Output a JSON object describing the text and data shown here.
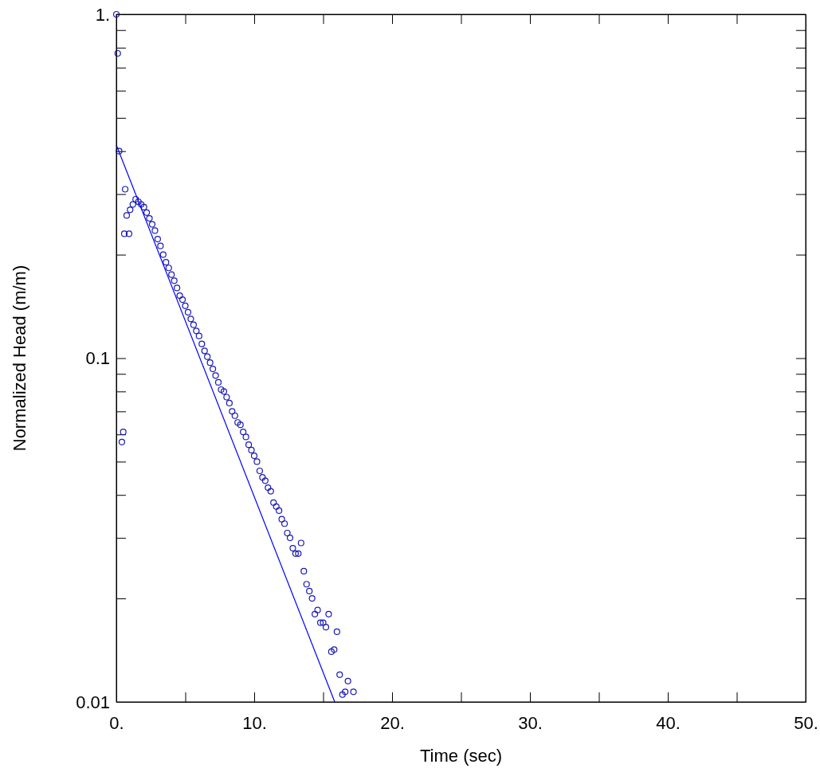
{
  "chart_data": {
    "type": "scatter",
    "xlabel": "Time (sec)",
    "ylabel": "Normalized Head (m/m)",
    "log": "y",
    "grid": false,
    "xlim": [
      0,
      50
    ],
    "xticks": [
      {
        "value": 0,
        "label": "0."
      },
      {
        "value": 5,
        "label": null
      },
      {
        "value": 10,
        "label": "10."
      },
      {
        "value": 15,
        "label": null
      },
      {
        "value": 20,
        "label": "20."
      },
      {
        "value": 25,
        "label": null
      },
      {
        "value": 30,
        "label": "30."
      },
      {
        "value": 35,
        "label": null
      },
      {
        "value": 40,
        "label": "40."
      },
      {
        "value": 45,
        "label": null
      },
      {
        "value": 50,
        "label": "50."
      }
    ],
    "ylim": [
      0.01,
      1
    ],
    "yticks": [
      0.01,
      {
        "value": 0.02,
        "label": null
      },
      {
        "value": 0.03,
        "label": null
      },
      {
        "value": 0.04,
        "label": null
      },
      {
        "value": 0.05,
        "label": null
      },
      {
        "value": 0.06,
        "label": null
      },
      {
        "value": 0.07,
        "label": null
      },
      {
        "value": 0.08,
        "label": null
      },
      {
        "value": 0.09,
        "label": null
      },
      0.1,
      {
        "value": 0.2,
        "label": null
      },
      {
        "value": 0.3,
        "label": null
      },
      {
        "value": 0.4,
        "label": null
      },
      {
        "value": 0.5,
        "label": null
      },
      {
        "value": 0.6,
        "label": null
      },
      {
        "value": 0.7,
        "label": null
      },
      {
        "value": 0.8,
        "label": null
      },
      {
        "value": 0.9,
        "label": null
      },
      {
        "value": 1,
        "label": "1."
      }
    ],
    "series": [
      {
        "marker": "circle",
        "color": "#1a1ab4",
        "x": [
          0,
          0.1,
          0.2,
          0.4,
          0.5,
          0.58,
          0.64,
          0.75,
          0.92,
          1.0,
          1.2,
          1.4,
          1.6,
          1.8,
          2.0,
          2.2,
          2.4,
          2.6,
          2.8,
          3.0,
          3.2,
          3.4,
          3.6,
          3.8,
          4.0,
          4.2,
          4.4,
          4.6,
          4.8,
          5.0,
          5.2,
          5.4,
          5.6,
          5.8,
          6.0,
          6.2,
          6.4,
          6.6,
          6.8,
          7.0,
          7.2,
          7.4,
          7.6,
          7.8,
          8.0,
          8.2,
          8.4,
          8.6,
          8.8,
          9.0,
          9.2,
          9.4,
          9.6,
          9.8,
          10.0,
          10.2,
          10.4,
          10.6,
          10.8,
          11.0,
          11.2,
          11.4,
          11.6,
          11.8,
          12.0,
          12.2,
          12.4,
          12.6,
          12.8,
          13.0,
          13.2,
          13.4,
          13.6,
          13.8,
          14.0,
          14.2,
          14.4,
          14.6,
          14.8,
          15.0,
          15.2,
          15.4,
          15.6,
          15.8,
          16.0,
          16.2,
          16.4,
          16.6,
          16.8,
          17.2
        ],
        "values": [
          1.0,
          0.77,
          0.4,
          0.057,
          0.061,
          0.23,
          0.31,
          0.26,
          0.23,
          0.27,
          0.28,
          0.29,
          0.285,
          0.28,
          0.275,
          0.265,
          0.255,
          0.245,
          0.235,
          0.222,
          0.212,
          0.2,
          0.19,
          0.183,
          0.175,
          0.168,
          0.16,
          0.152,
          0.148,
          0.142,
          0.136,
          0.13,
          0.125,
          0.12,
          0.116,
          0.11,
          0.105,
          0.101,
          0.097,
          0.093,
          0.089,
          0.085,
          0.081,
          0.08,
          0.077,
          0.074,
          0.07,
          0.068,
          0.065,
          0.064,
          0.061,
          0.059,
          0.056,
          0.054,
          0.052,
          0.05,
          0.047,
          0.045,
          0.044,
          0.042,
          0.041,
          0.038,
          0.037,
          0.036,
          0.034,
          0.033,
          0.031,
          0.03,
          0.028,
          0.027,
          0.027,
          0.029,
          0.024,
          0.022,
          0.021,
          0.02,
          0.018,
          0.0185,
          0.017,
          0.017,
          0.0165,
          0.018,
          0.014,
          0.0142,
          0.016,
          0.012,
          0.0105,
          0.0107,
          0.0115,
          0.0107
        ]
      },
      {
        "type": "line",
        "marker": "none",
        "color": "#0000ff",
        "x": [
          0,
          15.84
        ],
        "values": [
          0.417,
          0.01
        ]
      }
    ]
  }
}
